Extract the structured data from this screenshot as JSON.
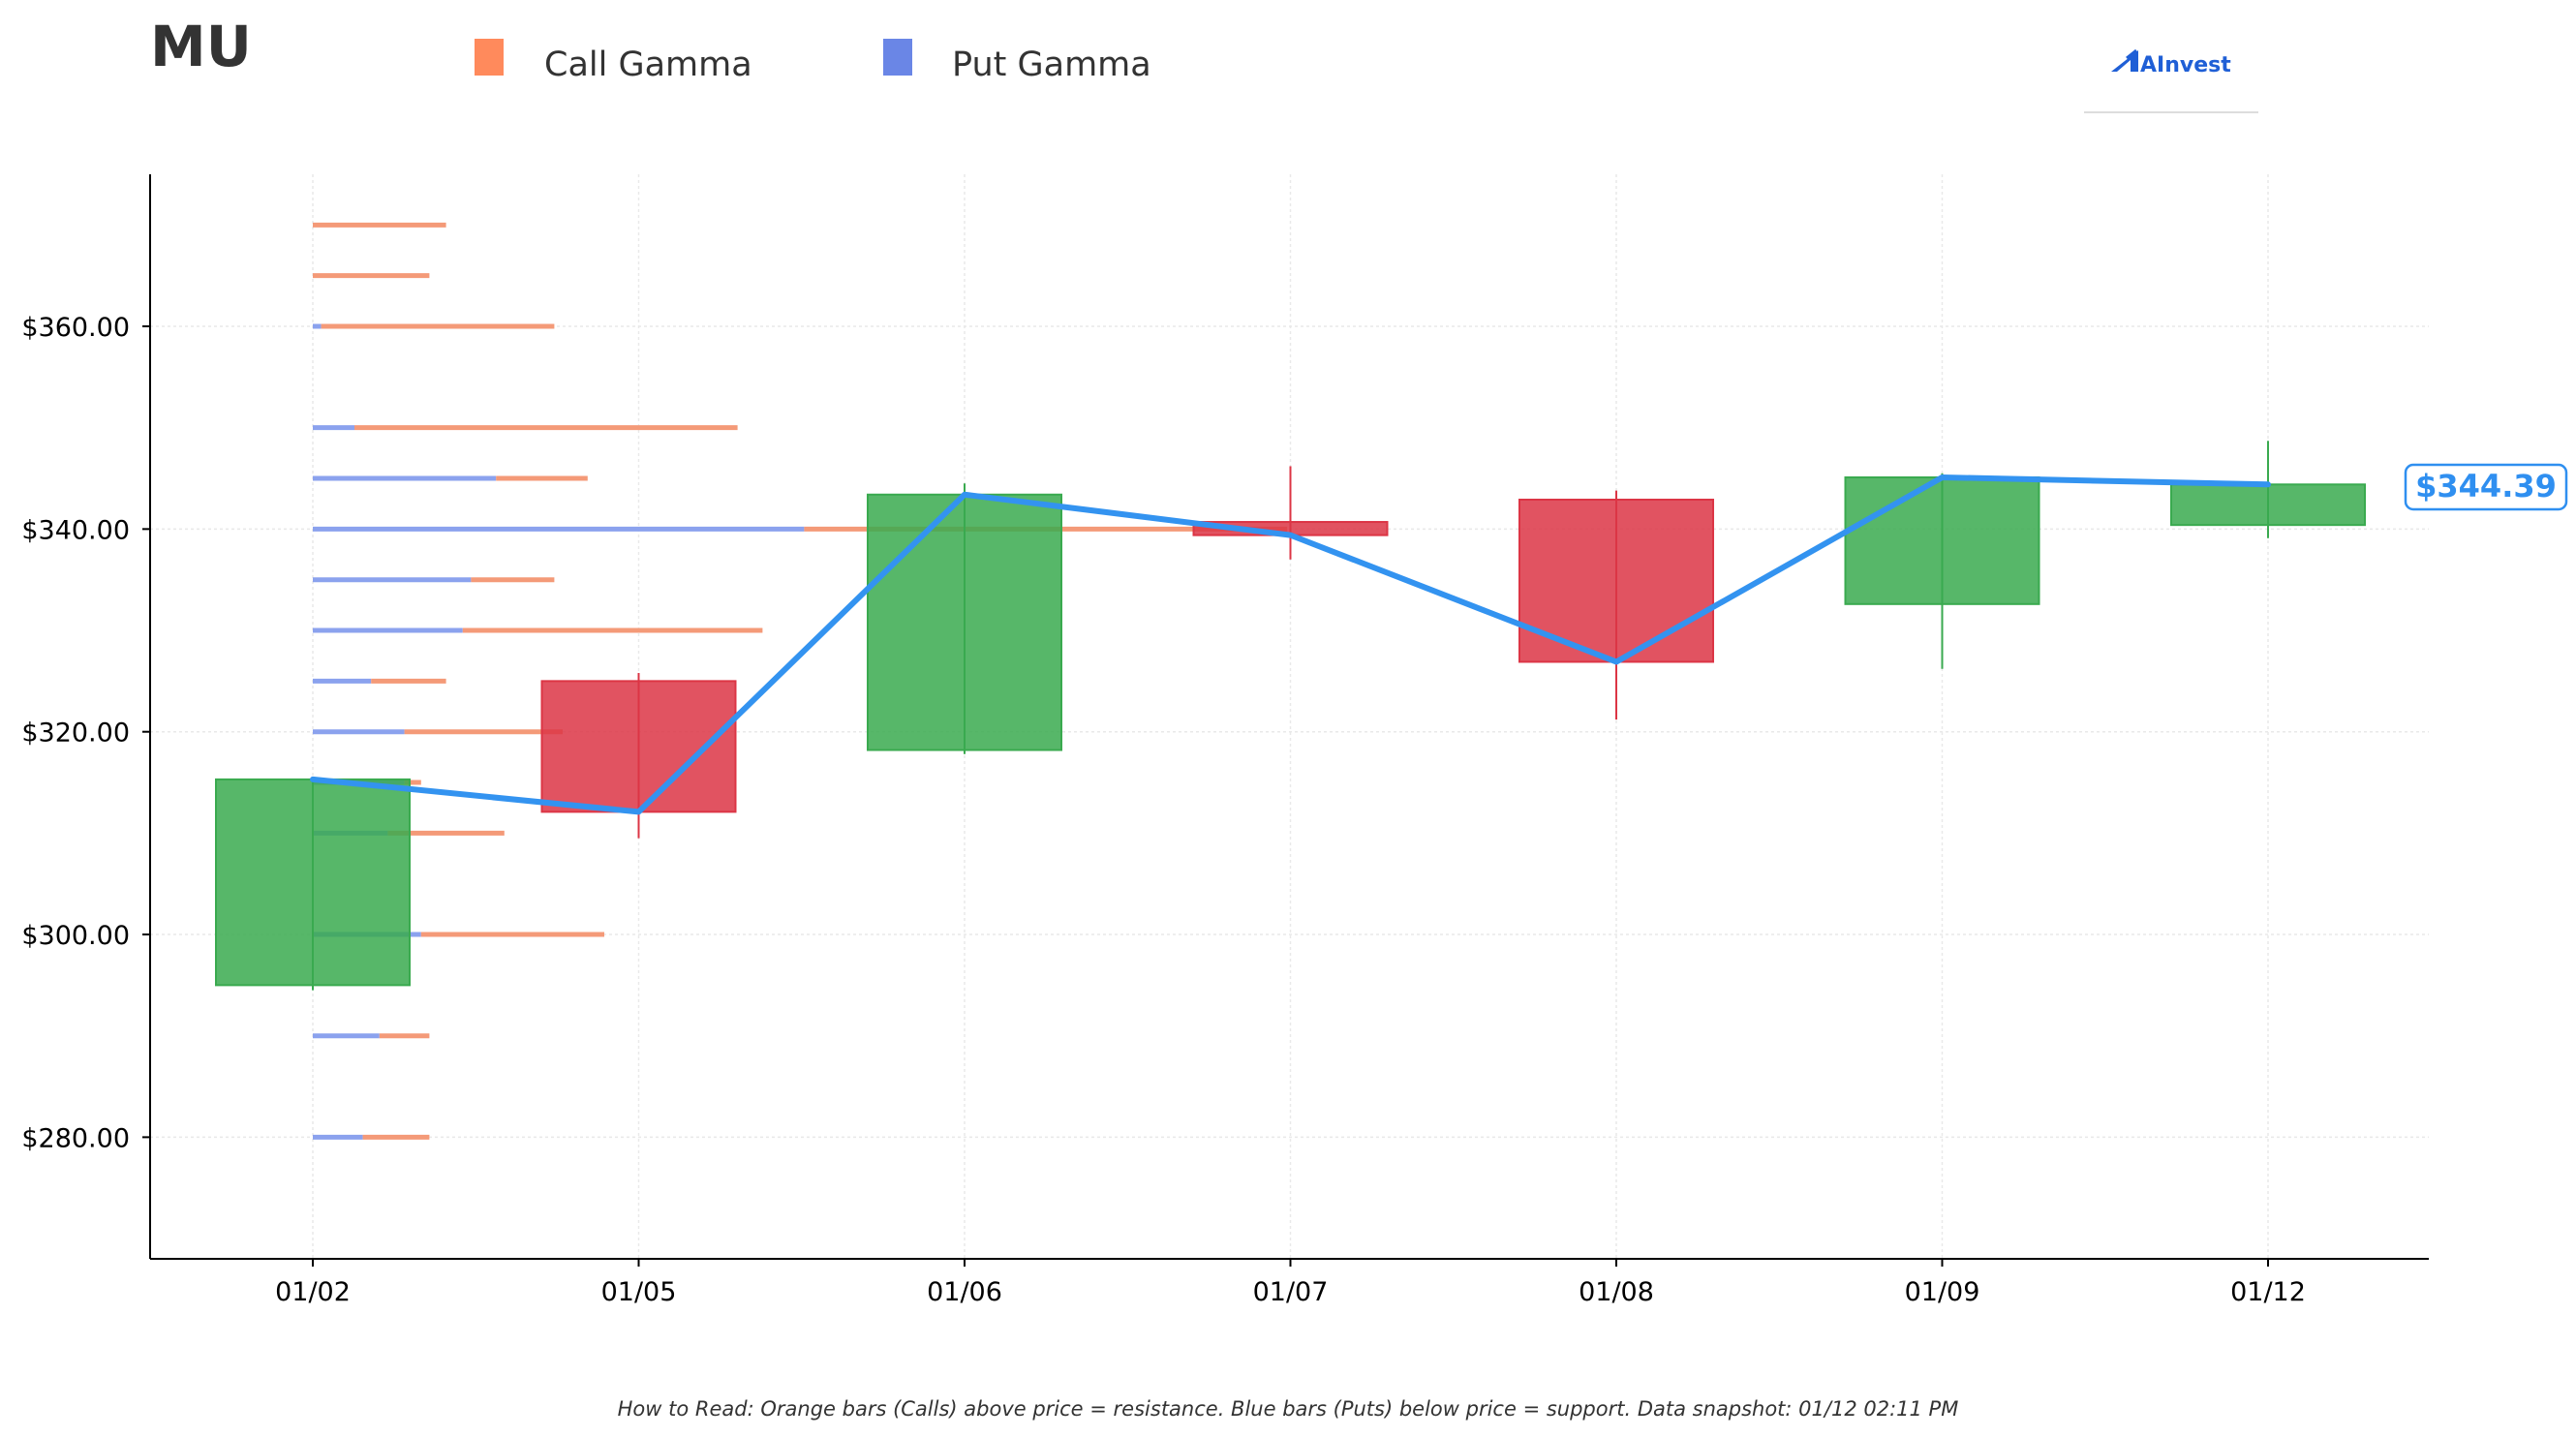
{
  "ticker": "MU",
  "legend": {
    "call_label": "Call Gamma",
    "put_label": "Put Gamma",
    "call_color": "#ff8a5c",
    "put_color": "#6a86e6"
  },
  "logo_text": "AInvest",
  "caption": "How to Read: Orange bars (Calls) above price = resistance. Blue bars (Puts) below price = support. Data snapshot: 01/12 02:11 PM",
  "last_price_label": "$344.39",
  "colors": {
    "up": "#3aaa4f",
    "down": "#dc3545",
    "price_line": "#3393f0",
    "call_bar": "#f49a78",
    "put_bar": "#8ba2ee",
    "axis": "#000000",
    "grid": "#e9e9e9"
  },
  "chart_data": {
    "type": "candlestick",
    "xlabel": "",
    "ylabel": "",
    "ylim": [
      268,
      375
    ],
    "yticks": [
      280,
      300,
      320,
      340,
      360
    ],
    "ytick_labels": [
      "$280.00",
      "$300.00",
      "$320.00",
      "$340.00",
      "$360.00"
    ],
    "categories": [
      "01/02",
      "01/05",
      "01/06",
      "01/07",
      "01/08",
      "01/09",
      "01/12"
    ],
    "candles": [
      {
        "date": "01/02",
        "open": 295.0,
        "high": 315.5,
        "low": 294.5,
        "close": 315.3
      },
      {
        "date": "01/05",
        "open": 325.0,
        "high": 325.8,
        "low": 309.5,
        "close": 312.1
      },
      {
        "date": "01/06",
        "open": 318.2,
        "high": 344.5,
        "low": 317.8,
        "close": 343.4
      },
      {
        "date": "01/07",
        "open": 340.7,
        "high": 346.2,
        "low": 337.0,
        "close": 339.4
      },
      {
        "date": "01/08",
        "open": 342.9,
        "high": 343.8,
        "low": 321.2,
        "close": 326.9
      },
      {
        "date": "01/09",
        "open": 332.6,
        "high": 345.5,
        "low": 326.2,
        "close": 345.1
      },
      {
        "date": "01/12",
        "open": 340.4,
        "high": 348.7,
        "low": 339.1,
        "close": 344.4
      }
    ],
    "close_line": [
      315.3,
      312.1,
      343.4,
      339.4,
      326.9,
      345.1,
      344.4
    ],
    "gamma_scale_max": 1.0,
    "gamma_levels": [
      {
        "strike": 280,
        "put": 0.06,
        "call": 0.08
      },
      {
        "strike": 290,
        "put": 0.08,
        "call": 0.06
      },
      {
        "strike": 300,
        "put": 0.13,
        "call": 0.22
      },
      {
        "strike": 310,
        "put": 0.09,
        "call": 0.14
      },
      {
        "strike": 315,
        "put": 0.11,
        "call": 0.02
      },
      {
        "strike": 320,
        "put": 0.11,
        "call": 0.19
      },
      {
        "strike": 325,
        "put": 0.07,
        "call": 0.09
      },
      {
        "strike": 330,
        "put": 0.18,
        "call": 0.36
      },
      {
        "strike": 335,
        "put": 0.19,
        "call": 0.1
      },
      {
        "strike": 340,
        "put": 0.59,
        "call": 0.58
      },
      {
        "strike": 345,
        "put": 0.22,
        "call": 0.11
      },
      {
        "strike": 350,
        "put": 0.05,
        "call": 0.46
      },
      {
        "strike": 360,
        "put": 0.01,
        "call": 0.28
      },
      {
        "strike": 365,
        "put": 0.0,
        "call": 0.14
      },
      {
        "strike": 370,
        "put": 0.0,
        "call": 0.16
      }
    ]
  }
}
